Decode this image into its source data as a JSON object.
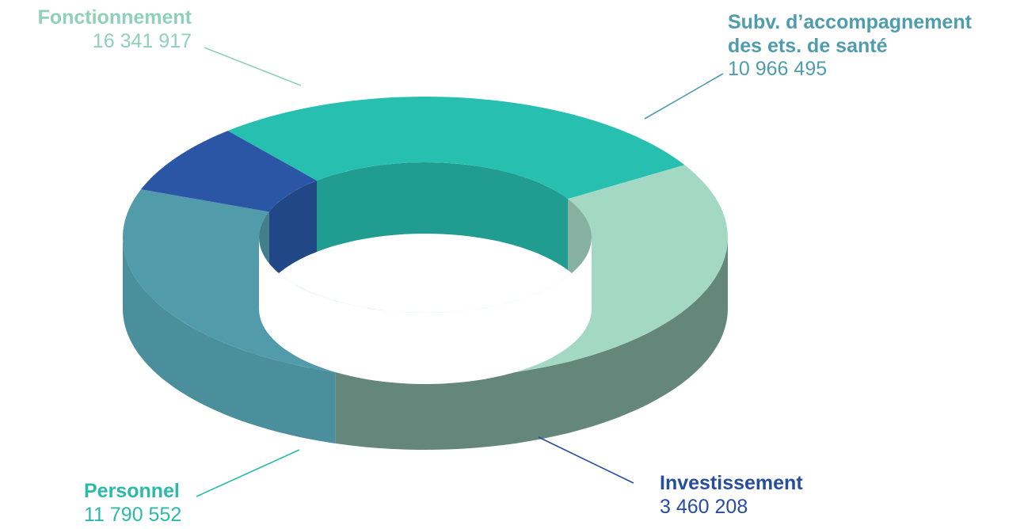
{
  "chart_data": {
    "type": "pie",
    "style": "3d-donut",
    "slices": [
      {
        "label": "Fonctionnement",
        "value": 16341917,
        "value_text": "16 341 917",
        "color": "#a3d8c5",
        "label_color": "#8fd0b8"
      },
      {
        "label": "Subv. d’accompagnement\ndes ets. de santé",
        "value": 10966495,
        "value_text": "10 966 495",
        "color": "#519bab",
        "label_color": "#4f9cae"
      },
      {
        "label": "Investissement",
        "value": 3460208,
        "value_text": "3 460 208",
        "color": "#2a56a5",
        "label_color": "#274e9e"
      },
      {
        "label": "Personnel",
        "value": 11790552,
        "value_text": "11 790 552",
        "color": "#27bfb0",
        "label_color": "#2bb9a8"
      }
    ]
  }
}
